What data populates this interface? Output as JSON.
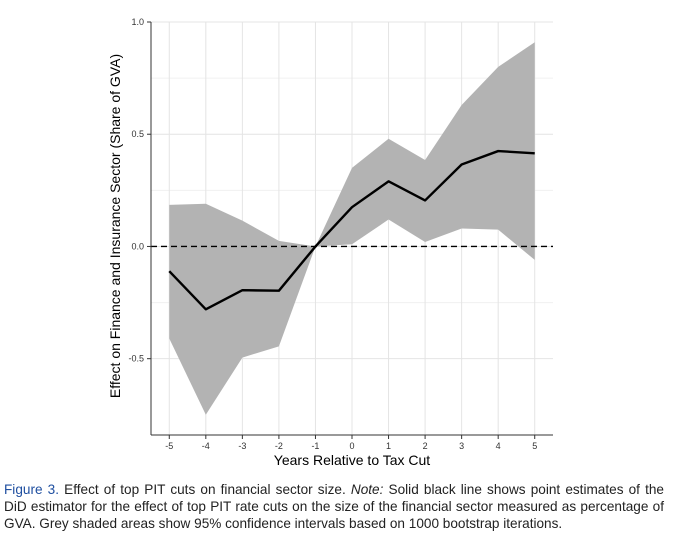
{
  "chart_data": {
    "type": "line",
    "xlabel": "Years Relative to Tax Cut",
    "ylabel": "Effect on Finance and Insurance Sector (Share of GVA)",
    "x": [
      -5,
      -4,
      -3,
      -2,
      -1,
      0,
      1,
      2,
      3,
      4,
      5
    ],
    "x_tick_labels": [
      "-5",
      "-4",
      "-3",
      "-2",
      "-1",
      "0",
      "1",
      "2",
      "3",
      "4",
      "5"
    ],
    "xlim": [
      -5.5,
      5.5
    ],
    "y_ticks": [
      -0.5,
      0.0,
      0.5,
      1.0
    ],
    "y_tick_labels": [
      "-0.5",
      "0.0",
      "0.5",
      "1.0"
    ],
    "ylim": [
      -0.84,
      1.0
    ],
    "series": [
      {
        "type": "line",
        "values": [
          -0.11,
          -0.28,
          -0.195,
          -0.197,
          0.0,
          0.175,
          0.29,
          0.205,
          0.365,
          0.425,
          0.415
        ],
        "color": "#000000"
      }
    ],
    "confidence_band": {
      "lower": [
        -0.41,
        -0.75,
        -0.495,
        -0.445,
        0.0,
        0.01,
        0.12,
        0.02,
        0.08,
        0.075,
        -0.06
      ],
      "upper": [
        0.185,
        0.19,
        0.115,
        0.025,
        0.0,
        0.35,
        0.48,
        0.385,
        0.63,
        0.8,
        0.91
      ],
      "color": "#b3b3b3"
    },
    "reference_line": {
      "y": 0,
      "style": "dashed",
      "color": "#000000"
    },
    "grid": true,
    "legend": "none"
  },
  "caption": {
    "figure_label": "Figure 3.",
    "title": " Effect of top PIT cuts on financial sector size. ",
    "note_label": "Note:",
    "note_text": " Solid black line shows point estimates of the DiD estimator for the effect of top PIT rate cuts on the size of the financial sector measured as percentage of GVA. Grey shaded areas show 95% confidence intervals based on 1000 bootstrap iterations."
  }
}
